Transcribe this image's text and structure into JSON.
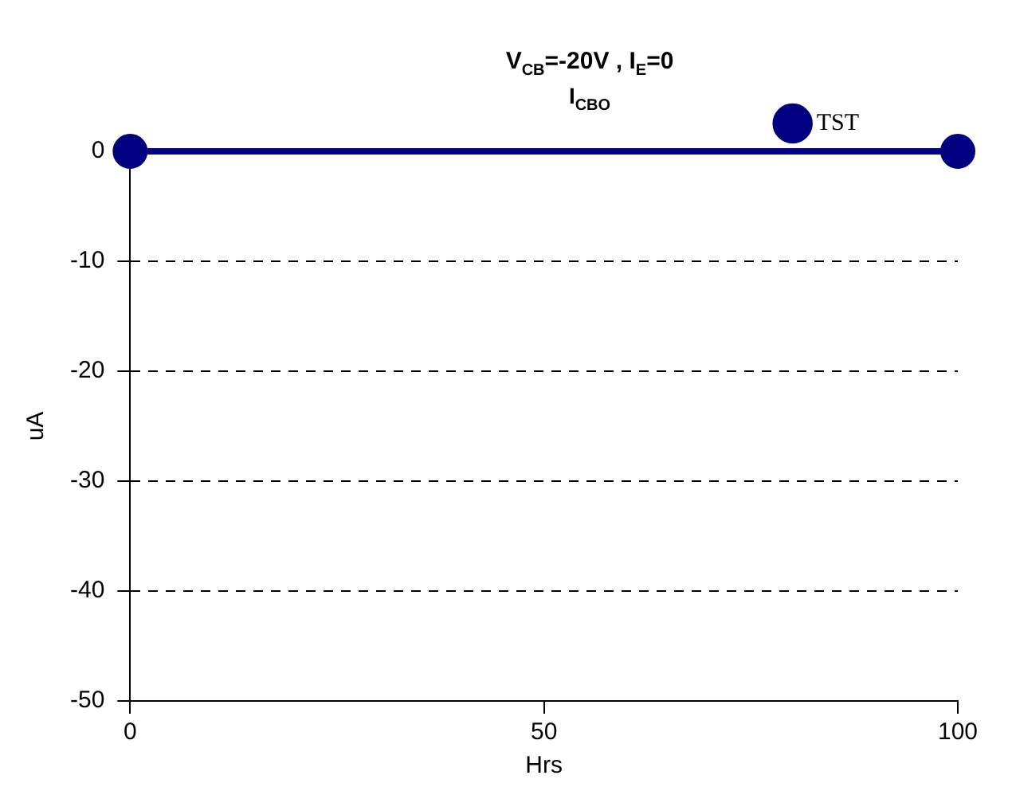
{
  "chart_data": {
    "type": "line",
    "title": "V$_{CB}$=-20V , I$_{E}$=0",
    "subtitle": "I$_{CBO}$",
    "xlabel": "Hrs",
    "ylabel": "uA",
    "x": [
      0,
      100
    ],
    "series": [
      {
        "name": "TST",
        "color": "#000080",
        "values": [
          0,
          0
        ]
      }
    ],
    "xlim": [
      0,
      100
    ],
    "xticks": [
      0,
      50,
      100
    ],
    "ylim": [
      -50,
      0
    ],
    "yticks": [
      -50,
      -40,
      -30,
      -20,
      -10,
      0
    ],
    "grid": "y",
    "legend": "top right",
    "marker": "circle",
    "line_style": "solid"
  }
}
